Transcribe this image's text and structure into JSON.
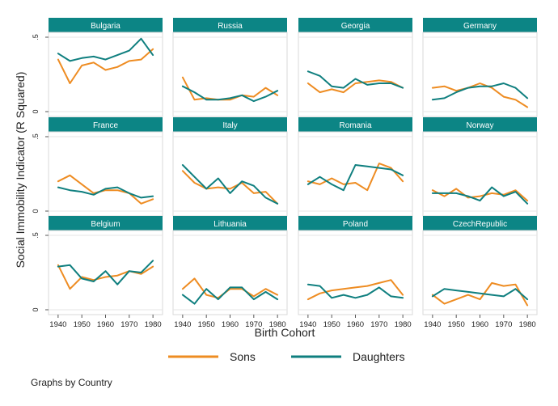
{
  "chart_data": {
    "type": "line",
    "ylabel": "Social Immobility Indicator (R Squared)",
    "xlabel": "Birth Cohort",
    "x_ticks": [
      1940,
      1950,
      1960,
      1970,
      1980
    ],
    "y_ticks": [
      {
        "value": 0,
        "label": "0"
      },
      {
        "value": 0.5,
        "label": ".5"
      }
    ],
    "xlim": [
      1938,
      1982
    ],
    "ylim": [
      0,
      0.5
    ],
    "x": [
      1940,
      1945,
      1950,
      1955,
      1960,
      1965,
      1970,
      1975,
      1980
    ],
    "grid": true,
    "legend_position": "bottom",
    "colors": {
      "Sons": "#ee8c22",
      "Daughters": "#0f7f7f",
      "header_bg": "#0c8585"
    },
    "series_names": [
      "Sons",
      "Daughters"
    ],
    "panels": [
      {
        "country": "Bulgaria",
        "series": [
          {
            "name": "Sons",
            "values": [
              0.35,
              0.19,
              0.31,
              0.33,
              0.28,
              0.3,
              0.34,
              0.35,
              0.42
            ]
          },
          {
            "name": "Daughters",
            "values": [
              0.39,
              0.34,
              0.36,
              0.37,
              0.35,
              0.38,
              0.41,
              0.49,
              0.38
            ]
          }
        ]
      },
      {
        "country": "Russia",
        "series": [
          {
            "name": "Sons",
            "values": [
              0.23,
              0.08,
              0.09,
              0.08,
              0.08,
              0.11,
              0.1,
              0.16,
              0.11
            ]
          },
          {
            "name": "Daughters",
            "values": [
              0.17,
              0.13,
              0.08,
              0.08,
              0.09,
              0.11,
              0.07,
              0.1,
              0.14
            ]
          }
        ]
      },
      {
        "country": "Georgia",
        "series": [
          {
            "name": "Sons",
            "values": [
              0.19,
              0.13,
              0.15,
              0.13,
              0.19,
              0.2,
              0.21,
              0.2,
              0.16
            ]
          },
          {
            "name": "Daughters",
            "values": [
              0.27,
              0.24,
              0.17,
              0.16,
              0.22,
              0.18,
              0.19,
              0.19,
              0.16
            ]
          }
        ]
      },
      {
        "country": "Germany",
        "series": [
          {
            "name": "Sons",
            "values": [
              0.16,
              0.17,
              0.14,
              0.16,
              0.19,
              0.16,
              0.1,
              0.08,
              0.03
            ]
          },
          {
            "name": "Daughters",
            "values": [
              0.08,
              0.09,
              0.13,
              0.16,
              0.17,
              0.17,
              0.19,
              0.16,
              0.09
            ]
          }
        ]
      },
      {
        "country": "France",
        "series": [
          {
            "name": "Sons",
            "values": [
              0.2,
              0.24,
              0.18,
              0.12,
              0.14,
              0.14,
              0.12,
              0.05,
              0.08
            ]
          },
          {
            "name": "Daughters",
            "values": [
              0.16,
              0.14,
              0.13,
              0.11,
              0.15,
              0.16,
              0.12,
              0.09,
              0.1
            ]
          }
        ]
      },
      {
        "country": "Italy",
        "series": [
          {
            "name": "Sons",
            "values": [
              0.27,
              0.19,
              0.15,
              0.16,
              0.15,
              0.19,
              0.12,
              0.13,
              0.05
            ]
          },
          {
            "name": "Daughters",
            "values": [
              0.31,
              0.23,
              0.15,
              0.22,
              0.12,
              0.2,
              0.17,
              0.09,
              0.05
            ]
          }
        ]
      },
      {
        "country": "Romania",
        "series": [
          {
            "name": "Sons",
            "values": [
              0.2,
              0.18,
              0.22,
              0.18,
              0.19,
              0.14,
              0.32,
              0.29,
              0.2
            ]
          },
          {
            "name": "Daughters",
            "values": [
              0.18,
              0.23,
              0.18,
              0.14,
              0.31,
              0.3,
              0.29,
              0.28,
              0.24
            ]
          }
        ]
      },
      {
        "country": "Norway",
        "series": [
          {
            "name": "Sons",
            "values": [
              0.14,
              0.1,
              0.15,
              0.09,
              0.1,
              0.12,
              0.11,
              0.14,
              0.07
            ]
          },
          {
            "name": "Daughters",
            "values": [
              0.12,
              0.12,
              0.12,
              0.1,
              0.07,
              0.16,
              0.1,
              0.13,
              0.05
            ]
          }
        ]
      },
      {
        "country": "Belgium",
        "series": [
          {
            "name": "Sons",
            "values": [
              0.3,
              0.14,
              0.22,
              0.2,
              0.22,
              0.23,
              0.26,
              0.24,
              0.29
            ]
          },
          {
            "name": "Daughters",
            "values": [
              0.29,
              0.3,
              0.21,
              0.19,
              0.26,
              0.17,
              0.26,
              0.25,
              0.33
            ]
          }
        ]
      },
      {
        "country": "Lithuania",
        "series": [
          {
            "name": "Sons",
            "values": [
              0.14,
              0.21,
              0.1,
              0.08,
              0.14,
              0.14,
              0.09,
              0.14,
              0.1
            ]
          },
          {
            "name": "Daughters",
            "values": [
              0.1,
              0.04,
              0.14,
              0.07,
              0.15,
              0.15,
              0.07,
              0.12,
              0.07
            ]
          }
        ]
      },
      {
        "country": "Poland",
        "series": [
          {
            "name": "Sons",
            "values": [
              0.07,
              0.11,
              0.13,
              0.14,
              0.15,
              0.16,
              0.18,
              0.2,
              0.1
            ]
          },
          {
            "name": "Daughters",
            "values": [
              0.17,
              0.16,
              0.08,
              0.1,
              0.08,
              0.1,
              0.15,
              0.09,
              0.08
            ]
          }
        ]
      },
      {
        "country": "CzechRepublic",
        "series": [
          {
            "name": "Sons",
            "values": [
              0.1,
              0.04,
              0.07,
              0.1,
              0.07,
              0.18,
              0.16,
              0.17,
              0.03
            ]
          },
          {
            "name": "Daughters",
            "values": [
              0.09,
              0.14,
              0.13,
              0.12,
              0.11,
              0.1,
              0.09,
              0.14,
              0.07
            ]
          }
        ]
      }
    ]
  },
  "footnote": "Graphs by Country"
}
